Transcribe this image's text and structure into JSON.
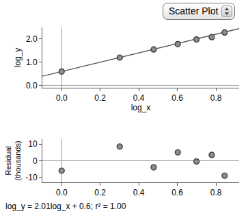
{
  "control": "Scatter Plot",
  "caption": "log_y = 2.01log_x + 0.6; r² = 1.00",
  "chart_data": [
    {
      "type": "scatter",
      "x_label": "log_x",
      "y_label": [
        "log_y"
      ],
      "x": [
        0,
        0.301,
        0.477,
        0.602,
        0.699,
        0.778,
        0.845
      ],
      "values": [
        0.6,
        1.2,
        1.55,
        1.78,
        1.98,
        2.08,
        2.28
      ],
      "color": "#8c8c8c",
      "marker": "circle",
      "fit_line": {
        "slope": 2.01,
        "intercept": 0.6,
        "color": "#555555"
      },
      "xlim": [
        -0.1,
        0.92
      ],
      "ylim": [
        -0.1,
        2.5
      ],
      "xticks": [
        {
          "value": 0,
          "label": "0.0"
        },
        {
          "value": 0.2,
          "label": "0.2"
        },
        {
          "value": 0.4,
          "label": "0.4"
        },
        {
          "value": 0.6,
          "label": "0.6"
        },
        {
          "value": 0.8,
          "label": "0.8"
        }
      ],
      "yticks": [
        {
          "value": 0,
          "label": "0.0"
        },
        {
          "value": 1,
          "label": "1.0"
        },
        {
          "value": 2,
          "label": "2.0"
        }
      ],
      "grid": false
    },
    {
      "type": "scatter",
      "y_label": [
        "Residual",
        "(thousands)"
      ],
      "x": [
        0,
        0.301,
        0.477,
        0.602,
        0.699,
        0.778,
        0.845
      ],
      "values": [
        -6,
        8.5,
        -4,
        5,
        -0.5,
        3.5,
        -9
      ],
      "color": "#8c8c8c",
      "marker": "circle",
      "xlim": [
        -0.1,
        0.92
      ],
      "ylim": [
        -13,
        13
      ],
      "xticks": [
        {
          "value": 0,
          "label": "0.0"
        },
        {
          "value": 0.2,
          "label": "0.2"
        },
        {
          "value": 0.4,
          "label": "0.4"
        },
        {
          "value": 0.6,
          "label": "0.6"
        },
        {
          "value": 0.8,
          "label": "0.8"
        }
      ],
      "yticks": [
        -10,
        0,
        10
      ],
      "grid": false
    }
  ]
}
